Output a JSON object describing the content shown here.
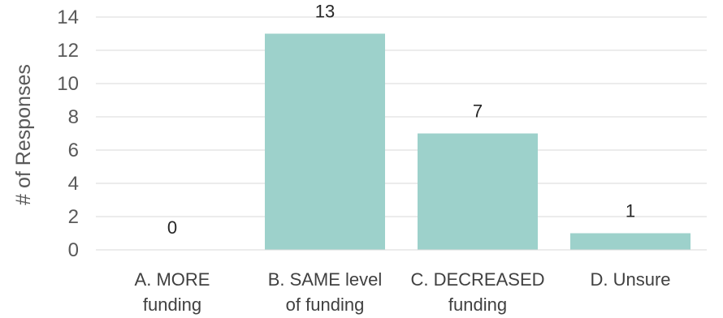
{
  "chart_data": {
    "type": "bar",
    "title": "",
    "xlabel": "",
    "ylabel": "# of Responses",
    "categories": [
      [
        "A. MORE",
        "funding"
      ],
      [
        "B. SAME level",
        "of funding"
      ],
      [
        "C. DECREASED",
        "funding"
      ],
      [
        "D. Unsure"
      ]
    ],
    "values": [
      0,
      13,
      7,
      1
    ],
    "data_labels": [
      "0",
      "13",
      "7",
      "1"
    ],
    "ylim": [
      0,
      14
    ],
    "yticks": [
      "0",
      "2",
      "4",
      "6",
      "8",
      "10",
      "12",
      "14"
    ],
    "grid": true,
    "legend": "none",
    "bar_color": "#9dd1cb",
    "gridline_color": "#d9d9d9"
  }
}
